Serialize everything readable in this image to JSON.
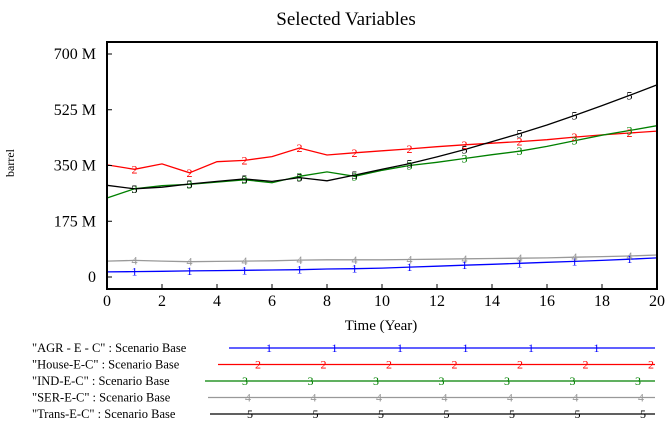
{
  "chart_data": {
    "type": "line",
    "title": "Selected Variables",
    "xlabel": "Time (Year)",
    "ylabel": "barrel",
    "xlim": [
      0,
      20
    ],
    "ylim": [
      0,
      700000000
    ],
    "x_ticks": [
      {
        "value": 0,
        "label": "0"
      },
      {
        "value": 2,
        "label": "2"
      },
      {
        "value": 4,
        "label": "4"
      },
      {
        "value": 6,
        "label": "6"
      },
      {
        "value": 8,
        "label": "8"
      },
      {
        "value": 10,
        "label": "10"
      },
      {
        "value": 12,
        "label": "12"
      },
      {
        "value": 14,
        "label": "14"
      },
      {
        "value": 16,
        "label": "16"
      },
      {
        "value": 18,
        "label": "18"
      },
      {
        "value": 20,
        "label": "20"
      }
    ],
    "y_ticks": [
      {
        "value": 0,
        "label": "0"
      },
      {
        "value": 175000000,
        "label": "175 M"
      },
      {
        "value": 350000000,
        "label": "350 M"
      },
      {
        "value": 525000000,
        "label": "525 M"
      },
      {
        "value": 700000000,
        "label": "700 M"
      }
    ],
    "grid": false,
    "legend_position": "bottom",
    "x": [
      0,
      1,
      2,
      3,
      4,
      5,
      6,
      7,
      8,
      9,
      10,
      11,
      12,
      13,
      14,
      15,
      16,
      17,
      18,
      19,
      20
    ],
    "series": [
      {
        "name": "\"AGR - E - C\" : Scenario Base",
        "marker": "1",
        "color": "#0000ff",
        "values": [
          16000000,
          17000000,
          18000000,
          19000000,
          20000000,
          21000000,
          22000000,
          23000000,
          25000000,
          26000000,
          28000000,
          31000000,
          34000000,
          37000000,
          40000000,
          43000000,
          46000000,
          49000000,
          52000000,
          56000000,
          60000000
        ]
      },
      {
        "name": "\"House-E-C\" : Scenario Base",
        "marker": "2",
        "color": "#ff0000",
        "values": [
          352000000,
          338000000,
          355000000,
          327000000,
          362000000,
          366000000,
          378000000,
          405000000,
          383000000,
          390000000,
          396000000,
          402000000,
          409000000,
          415000000,
          420000000,
          425000000,
          431000000,
          439000000,
          446000000,
          452000000,
          458000000
        ]
      },
      {
        "name": "\"IND-E-C\" : Scenario Base",
        "marker": "3",
        "color": "#008000",
        "values": [
          248000000,
          277000000,
          287000000,
          291000000,
          298000000,
          305000000,
          296000000,
          316000000,
          330000000,
          316000000,
          335000000,
          350000000,
          360000000,
          372000000,
          384000000,
          395000000,
          410000000,
          428000000,
          445000000,
          460000000,
          475000000
        ]
      },
      {
        "name": "\"SER-E-C\" : Scenario Base",
        "marker": "4",
        "color": "#999999",
        "values": [
          50000000,
          52000000,
          50000000,
          48000000,
          49000000,
          50000000,
          51000000,
          53000000,
          54000000,
          54000000,
          54000000,
          55000000,
          56000000,
          57000000,
          58000000,
          59000000,
          60000000,
          62000000,
          64000000,
          66000000,
          69000000
        ]
      },
      {
        "name": "\"Trans-E-C\" : Scenario Base",
        "marker": "5",
        "color": "#000000",
        "values": [
          288000000,
          277000000,
          282000000,
          292000000,
          300000000,
          308000000,
          300000000,
          312000000,
          302000000,
          320000000,
          338000000,
          356000000,
          377000000,
          400000000,
          425000000,
          450000000,
          477000000,
          507000000,
          538000000,
          570000000,
          603000000
        ]
      }
    ]
  }
}
